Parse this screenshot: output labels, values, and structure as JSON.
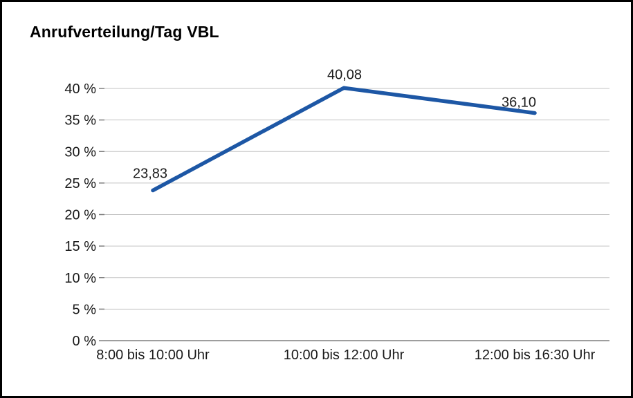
{
  "chart_data": {
    "type": "line",
    "title": "Anrufverteilung/Tag VBL",
    "categories": [
      "8:00 bis 10:00 Uhr",
      "10:00 bis 12:00 Uhr",
      "12:00 bis 16:30 Uhr"
    ],
    "values": [
      23.83,
      40.08,
      36.1
    ],
    "point_labels": [
      "23,83",
      "40,08",
      "36,10"
    ],
    "ylim": [
      0,
      40
    ],
    "yticks": [
      0,
      5,
      10,
      15,
      20,
      25,
      30,
      35,
      40
    ],
    "ytick_labels": [
      "0 %",
      "5 %",
      "10 %",
      "15 %",
      "20 %",
      "25 %",
      "30 %",
      "35 %",
      "40 %"
    ],
    "grid": "horizontal",
    "legend": "none",
    "xlabel": "",
    "ylabel": ""
  },
  "colors": {
    "line": "#1d57a5",
    "grid": "#c3c3c3",
    "axis": "#7f7f7f",
    "text": "#1a1a1a",
    "border": "#000000",
    "background": "#ffffff"
  }
}
